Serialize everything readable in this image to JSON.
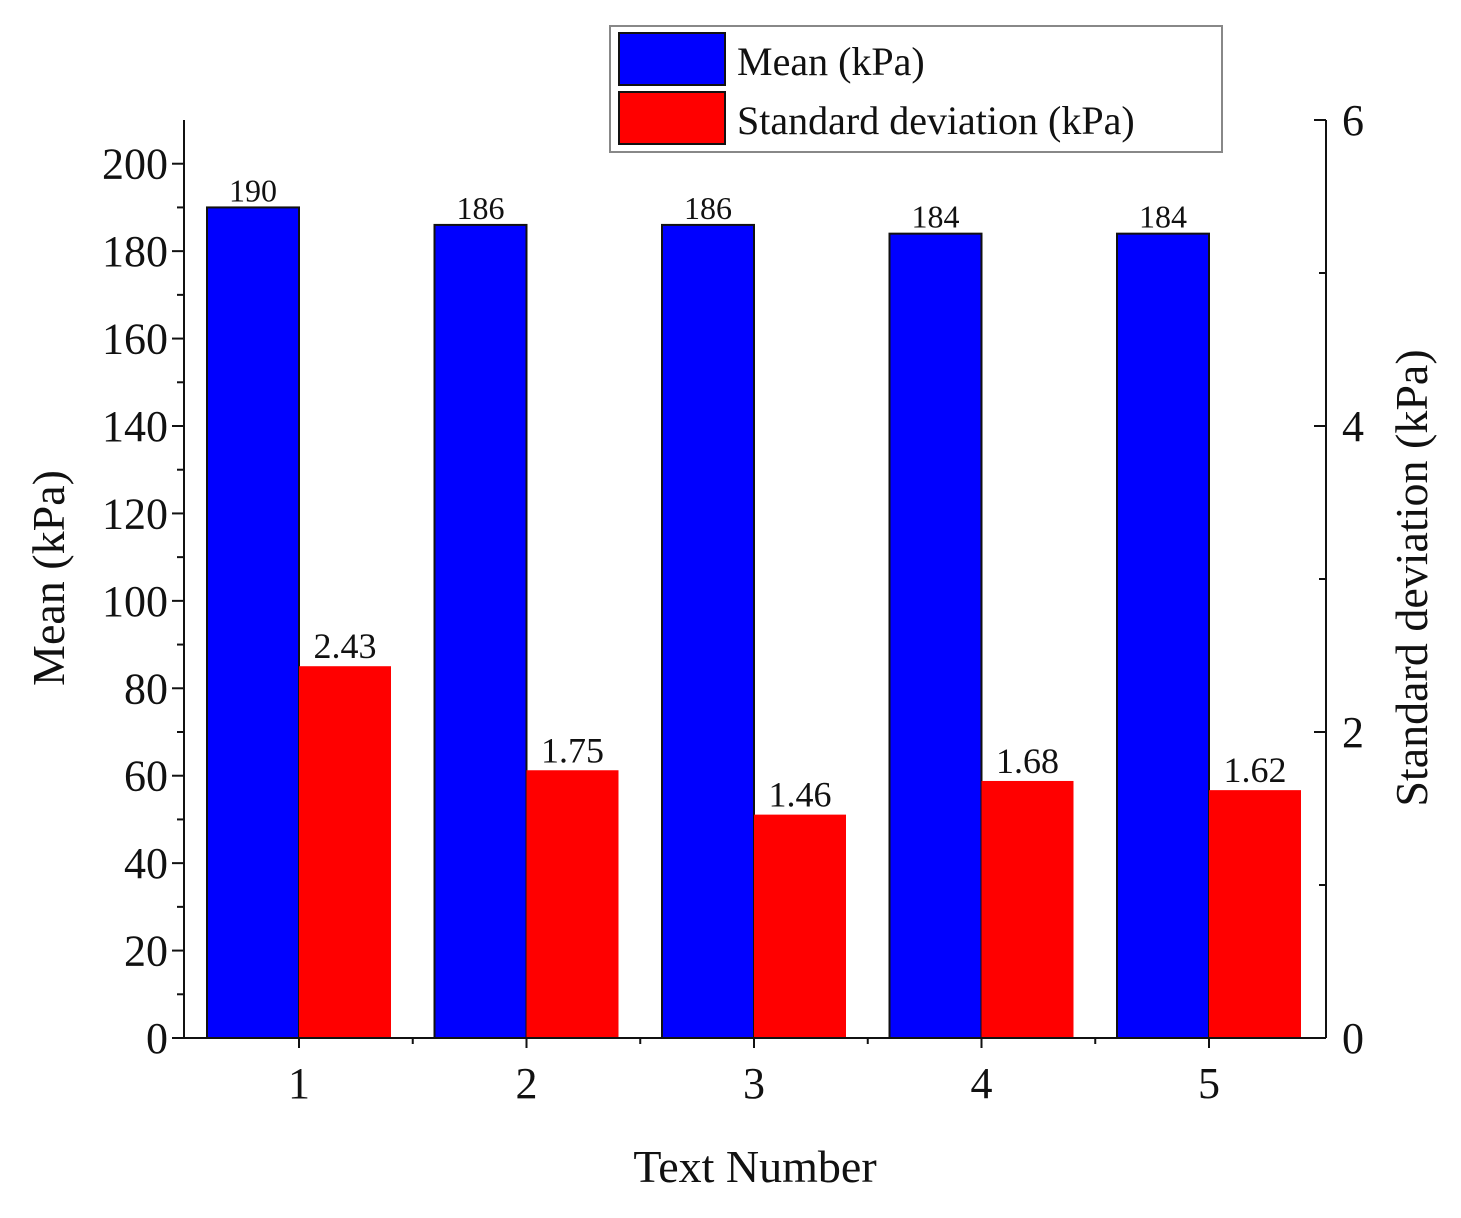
{
  "chart_data": {
    "type": "bar",
    "title": "",
    "xlabel": "Text Number",
    "ylabel": "Mean (kPa)",
    "y2label": "Standard deviation (kPa)",
    "categories": [
      "1",
      "2",
      "3",
      "4",
      "5"
    ],
    "ylim": [
      0,
      210
    ],
    "y2lim": [
      0,
      6
    ],
    "yticks": [
      "0",
      "20",
      "40",
      "60",
      "80",
      "100",
      "120",
      "140",
      "160",
      "180",
      "200"
    ],
    "y2ticks": [
      "0",
      "2",
      "4",
      "6"
    ],
    "grid": false,
    "legend_position": "top-right",
    "series": [
      {
        "name": "Mean (kPa)",
        "axis": "left",
        "color": "#0000FF",
        "values": [
          190,
          186,
          186,
          184,
          184
        ],
        "labels": [
          "190",
          "186",
          "186",
          "184",
          "184"
        ]
      },
      {
        "name": "Standard deviation (kPa)",
        "axis": "right",
        "color": "#FF0000",
        "values": [
          2.43,
          1.75,
          1.46,
          1.68,
          1.62
        ],
        "labels": [
          "2.43",
          "1.75",
          "1.46",
          "1.68",
          "1.62"
        ]
      }
    ]
  }
}
